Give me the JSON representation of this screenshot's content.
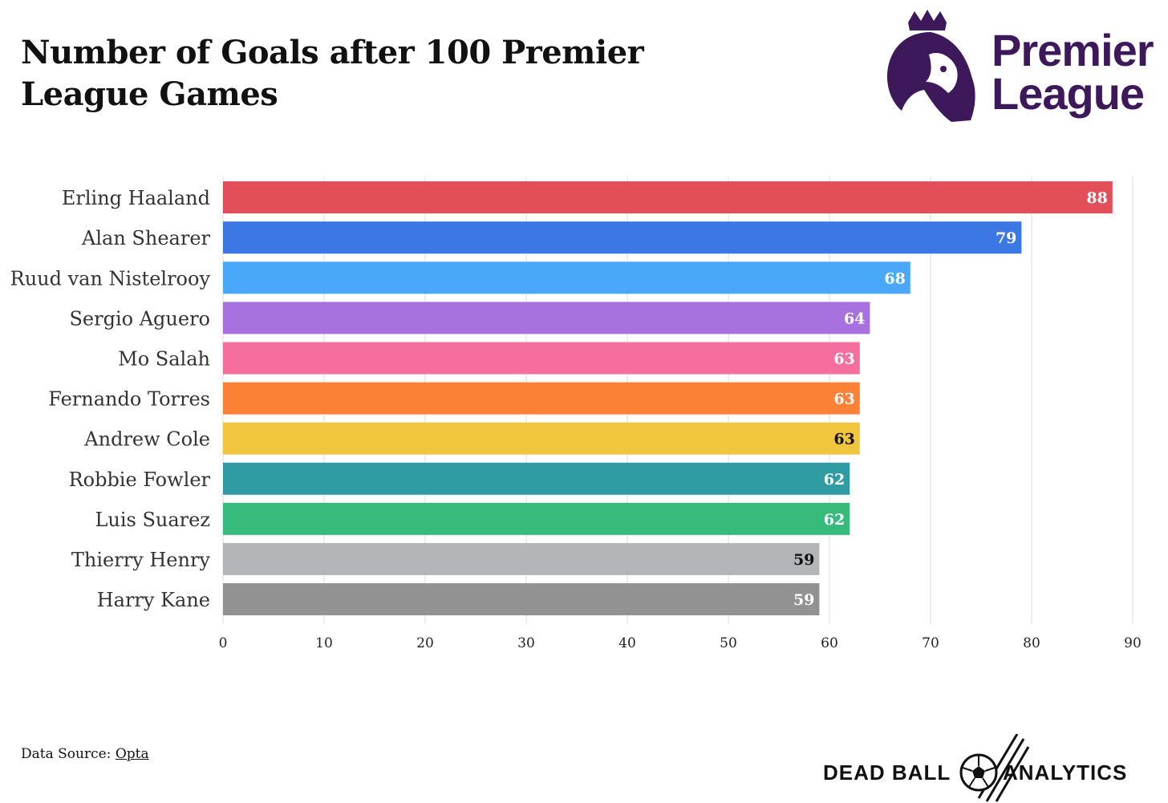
{
  "title": "Number of Goals after 100 Premier League Games",
  "logo": {
    "line1": "Premier",
    "line2": "League",
    "color": "#3d195b"
  },
  "footer": {
    "source_prefix": "Data Source: ",
    "source_link": "Opta",
    "brand_left": "DEAD BALL",
    "brand_right": "ANALYTICS"
  },
  "chart_data": {
    "type": "bar",
    "orientation": "horizontal",
    "title": "Number of Goals after 100 Premier League Games",
    "xlabel": "",
    "ylabel": "",
    "xlim": [
      0,
      90
    ],
    "xticks": [
      0,
      10,
      20,
      30,
      40,
      50,
      60,
      70,
      80,
      90
    ],
    "grid": true,
    "categories": [
      "Erling Haaland",
      "Alan Shearer",
      "Ruud van Nistelrooy",
      "Sergio Aguero",
      "Mo Salah",
      "Fernando Torres",
      "Andrew Cole",
      "Robbie Fowler",
      "Luis Suarez",
      "Thierry Henry",
      "Harry Kane"
    ],
    "values": [
      88,
      79,
      68,
      64,
      63,
      63,
      63,
      62,
      62,
      59,
      59
    ],
    "colors": [
      "#e24f58",
      "#3c78e4",
      "#4aa8fb",
      "#a772df",
      "#f56e9e",
      "#fc8136",
      "#f1c53e",
      "#2f9ba2",
      "#37bb7c",
      "#b3b5b8",
      "#929292"
    ],
    "label_colors": [
      "#ffffff",
      "#ffffff",
      "#ffffff",
      "#ffffff",
      "#ffffff",
      "#ffffff",
      "#111111",
      "#ffffff",
      "#ffffff",
      "#111111",
      "#ffffff"
    ]
  }
}
